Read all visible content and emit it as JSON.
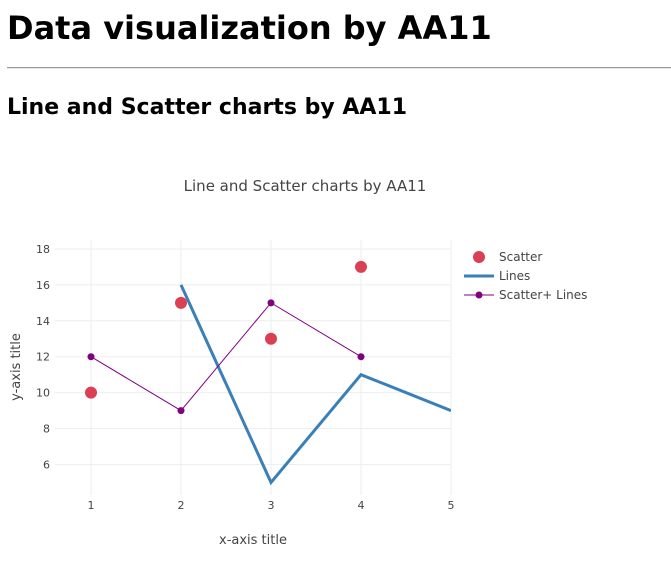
{
  "page": {
    "heading": "Data visualization by AA11",
    "subheading": "Line and Scatter charts by AA11"
  },
  "chart_data": {
    "type": "line",
    "title": "Line and Scatter charts by AA11",
    "xlabel": "x-axis title",
    "ylabel": "y-axis title",
    "xlim": [
      0.6,
      5
    ],
    "ylim": [
      4.3,
      18.5
    ],
    "xticks": [
      1,
      2,
      3,
      4,
      5
    ],
    "yticks": [
      6,
      8,
      10,
      12,
      14,
      16,
      18
    ],
    "grid": true,
    "legend_position": "top-right",
    "series": [
      {
        "name": "Scatter",
        "mode": "markers",
        "color": "#db3f54",
        "x": [
          1,
          2,
          3,
          4
        ],
        "y": [
          10,
          15,
          13,
          17
        ]
      },
      {
        "name": "Lines",
        "mode": "lines",
        "color": "#3b7fb8",
        "x": [
          2,
          3,
          4,
          5
        ],
        "y": [
          16,
          5,
          11,
          9
        ]
      },
      {
        "name": "Scatter+ Lines",
        "mode": "lines+markers",
        "color": "#800080",
        "x": [
          1,
          2,
          3,
          4
        ],
        "y": [
          12,
          9,
          15,
          12
        ]
      }
    ]
  }
}
